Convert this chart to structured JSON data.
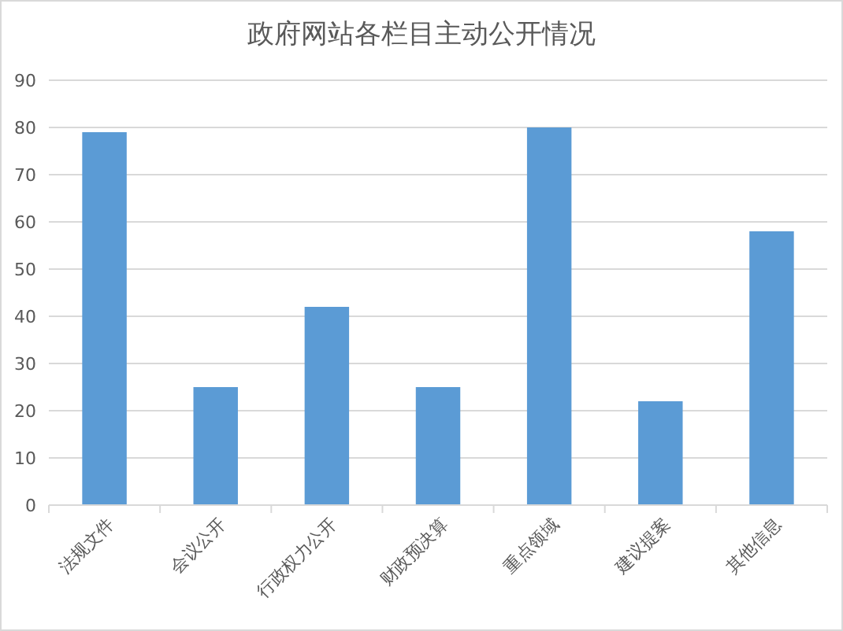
{
  "chart_data": {
    "type": "bar",
    "title": "政府网站各栏目主动公开情况",
    "categories": [
      "法规文件",
      "会议公开",
      "行政权力公开",
      "财政预决算",
      "重点领域",
      "建议提案",
      "其他信息"
    ],
    "values": [
      79,
      25,
      42,
      25,
      80,
      22,
      58
    ],
    "color": "#5b9bd5",
    "ylim": [
      0,
      90
    ],
    "yticks": [
      0,
      10,
      20,
      30,
      40,
      50,
      60,
      70,
      80,
      90
    ],
    "grid": "y"
  }
}
